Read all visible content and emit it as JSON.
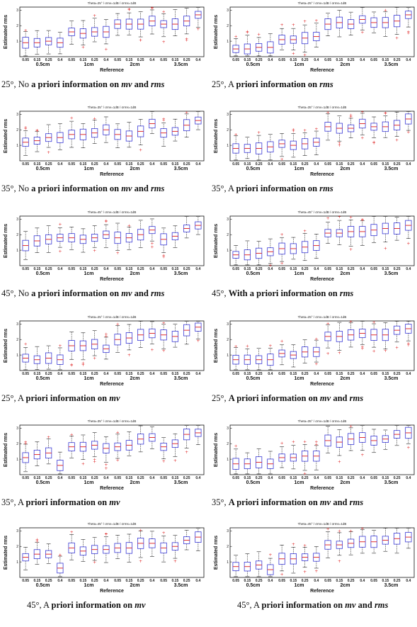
{
  "common": {
    "xlabel": "Reference",
    "ylabel": "Estimated rms",
    "yticks": [
      "1",
      "2",
      "3"
    ],
    "categories": [
      "0.05",
      "0.15",
      "0.25",
      "0.4",
      "0.05",
      "0.15",
      "0.25",
      "0.4",
      "0.05",
      "0.15",
      "0.25",
      "0.4",
      "0.05",
      "0.15",
      "0.25",
      "0.4"
    ],
    "groups": [
      "0.5cm",
      "1cm",
      "2cm",
      "3.5cm"
    ],
    "colors": {
      "box": "#3b3bd6",
      "median": "#e03030",
      "outlier": "#e03030",
      "whisker": "#222222",
      "axis": "#111111"
    }
  },
  "captions": [
    {
      "pre": "25°, No ",
      "b1": "a priori information on ",
      "i1": "mv",
      "b2": " and ",
      "i2": "rms",
      "b3": ""
    },
    {
      "pre": "25°, A ",
      "b1": "priori information on ",
      "i1": "rms",
      "b2": "",
      "i2": "",
      "b3": ""
    },
    {
      "pre": "35°, No ",
      "b1": "a priori information on ",
      "i1": "mv",
      "b2": " and ",
      "i2": "rms",
      "b3": ""
    },
    {
      "pre": "35°, A ",
      "b1": "priori information on ",
      "i1": "rms",
      "b2": "",
      "i2": "",
      "b3": ""
    },
    {
      "pre": "45°, No ",
      "b1": "a priori information on ",
      "i1": "mv",
      "b2": " and ",
      "i2": "rms",
      "b3": ""
    },
    {
      "pre": "45°, ",
      "b1": "With a priori information on ",
      "i1": "rms",
      "b2": "",
      "i2": "",
      "b3": ""
    },
    {
      "pre": "25°, A ",
      "b1": "priori information on ",
      "i1": "mv",
      "b2": "",
      "i2": "",
      "b3": ""
    },
    {
      "pre": "25°, ",
      "b1": "A priori information on ",
      "i1": "mv",
      "b2": " and ",
      "i2": "rms",
      "b3": ""
    },
    {
      "pre": "35°, A ",
      "b1": "priori information on ",
      "i1": "mv",
      "b2": "",
      "i2": "",
      "b3": ""
    },
    {
      "pre": "35°, ",
      "b1": "A priori information on ",
      "i1": "mv",
      "b2": " and ",
      "i2": "rms",
      "b3": ""
    },
    {
      "pre": "45°, A ",
      "b1": "priori information on ",
      "i1": "mv",
      "b2": "",
      "i2": "",
      "b3": ""
    },
    {
      "pre": "45°, A ",
      "b1": "priori information on ",
      "i1": "mv",
      "b2": " and ",
      "i2": "rms",
      "b3": ""
    }
  ],
  "chart_data": [
    {
      "type": "box",
      "panel": 1,
      "title": "Theta=25° / σmv=1dB / σrms=1dB",
      "ylim": [
        0,
        3.2
      ],
      "median": [
        0.9,
        0.9,
        1.0,
        0.9,
        1.6,
        1.5,
        1.6,
        1.6,
        2.1,
        2.1,
        2.1,
        2.3,
        2.1,
        2.1,
        2.3,
        2.7
      ]
    },
    {
      "type": "box",
      "panel": 2,
      "title": "Theta=25° / σmv=1dB / σrms=1dB",
      "ylim": [
        0,
        3.2
      ],
      "median": [
        0.5,
        0.5,
        0.6,
        0.6,
        1.1,
        1.1,
        1.2,
        1.3,
        2.1,
        2.2,
        2.1,
        2.4,
        2.2,
        2.2,
        2.3,
        2.7
      ]
    },
    {
      "type": "box",
      "panel": 3,
      "title": "Theta=35° / σmv=1dB / σrms=1dB",
      "ylim": [
        0,
        3.2
      ],
      "median": [
        1.2,
        1.3,
        1.5,
        1.5,
        1.7,
        1.7,
        1.8,
        2.0,
        1.7,
        1.6,
        1.9,
        2.4,
        1.8,
        1.9,
        2.3,
        2.6
      ]
    },
    {
      "type": "box",
      "panel": 4,
      "title": "Theta=35° / σmv=1dB / σrms=1dB",
      "ylim": [
        0,
        3.2
      ],
      "median": [
        0.8,
        0.8,
        0.8,
        0.9,
        1.1,
        1.0,
        1.1,
        1.2,
        2.2,
        2.1,
        2.1,
        2.4,
        2.2,
        2.2,
        2.3,
        2.7
      ]
    },
    {
      "type": "box",
      "panel": 5,
      "title": "Theta=45° / σmv=1dB / σrms=1dB",
      "ylim": [
        0,
        3.2
      ],
      "median": [
        1.3,
        1.6,
        1.7,
        1.8,
        1.8,
        1.7,
        1.8,
        2.0,
        1.8,
        1.8,
        2.0,
        2.3,
        1.7,
        1.9,
        2.4,
        2.6
      ]
    },
    {
      "type": "box",
      "panel": 6,
      "title": "Theta=45° / σmv=1dB / σrms=1dB",
      "ylim": [
        0,
        3.2
      ],
      "median": [
        0.7,
        0.7,
        0.8,
        0.9,
        1.1,
        1.1,
        1.2,
        1.3,
        2.1,
        2.1,
        2.2,
        2.2,
        2.3,
        2.4,
        2.4,
        2.6
      ]
    },
    {
      "type": "box",
      "panel": 7,
      "title": "Theta=25° / σmv=1dB / σrms=1dB",
      "ylim": [
        0,
        3.2
      ],
      "median": [
        0.8,
        0.7,
        0.8,
        0.7,
        1.6,
        1.6,
        1.7,
        1.4,
        2.0,
        2.1,
        2.3,
        2.4,
        2.3,
        2.2,
        2.6,
        2.8
      ]
    },
    {
      "type": "box",
      "panel": 8,
      "title": "Theta=25° / σmv=1dB / σrms=1dB",
      "ylim": [
        0,
        3.2
      ],
      "median": [
        0.7,
        0.7,
        0.7,
        0.7,
        1.1,
        1.0,
        1.2,
        1.2,
        2.2,
        2.2,
        2.3,
        2.4,
        2.3,
        2.3,
        2.6,
        2.7
      ]
    },
    {
      "type": "box",
      "panel": 9,
      "title": "Theta=35° / σmv=1dB / σrms=1dB",
      "ylim": [
        0,
        3.2
      ],
      "median": [
        1.1,
        1.3,
        1.4,
        0.6,
        1.8,
        1.8,
        1.9,
        1.7,
        1.8,
        1.9,
        2.3,
        2.4,
        1.8,
        2.0,
        2.6,
        2.7
      ]
    },
    {
      "type": "box",
      "panel": 10,
      "title": "Theta=35° / σmv=1dB / σrms=1dB",
      "ylim": [
        0,
        3.2
      ],
      "median": [
        0.7,
        0.7,
        0.8,
        0.7,
        1.1,
        1.1,
        1.2,
        1.2,
        2.2,
        2.1,
        2.3,
        2.4,
        2.2,
        2.3,
        2.6,
        2.7
      ]
    },
    {
      "type": "box",
      "panel": 11,
      "title": "Theta=45° / σmv=1dB / σrms=1dB",
      "ylim": [
        0,
        3.2
      ],
      "median": [
        1.3,
        1.5,
        1.5,
        0.6,
        1.9,
        1.7,
        1.8,
        1.8,
        1.9,
        1.9,
        2.2,
        2.2,
        1.9,
        2.0,
        2.4,
        2.6
      ]
    },
    {
      "type": "box",
      "panel": 12,
      "title": "Theta=45° / σmv=1dB / σrms=1dB",
      "ylim": [
        0,
        3.2
      ],
      "median": [
        0.7,
        0.7,
        0.8,
        0.5,
        1.2,
        1.2,
        1.3,
        1.3,
        2.1,
        2.1,
        2.2,
        2.3,
        2.3,
        2.4,
        2.5,
        2.6
      ]
    }
  ]
}
